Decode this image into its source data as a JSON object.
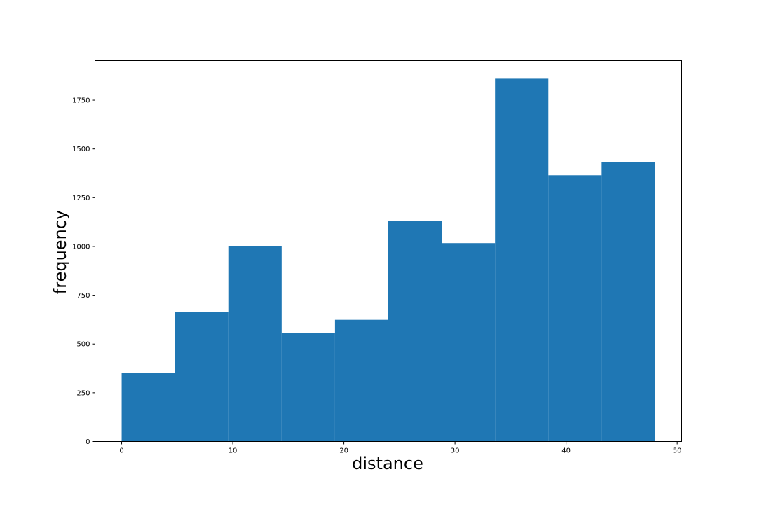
{
  "chart_data": {
    "type": "bar",
    "title": "",
    "xlabel": "distance",
    "ylabel": "frequency",
    "bin_edges": [
      0.0,
      4.8,
      9.6,
      14.4,
      19.2,
      24.0,
      28.8,
      33.6,
      38.4,
      43.2,
      48.0
    ],
    "values": [
      352,
      665,
      1000,
      557,
      624,
      1131,
      1017,
      1860,
      1365,
      1432
    ],
    "xlim": [
      -2.4,
      50.4
    ],
    "ylim": [
      0,
      1953
    ],
    "x_ticks": [
      0,
      10,
      20,
      30,
      40,
      50
    ],
    "y_ticks": [
      0,
      250,
      500,
      750,
      1000,
      1250,
      1500,
      1750
    ],
    "bar_color": "#1f77b4",
    "grid": false,
    "legend": "none"
  }
}
